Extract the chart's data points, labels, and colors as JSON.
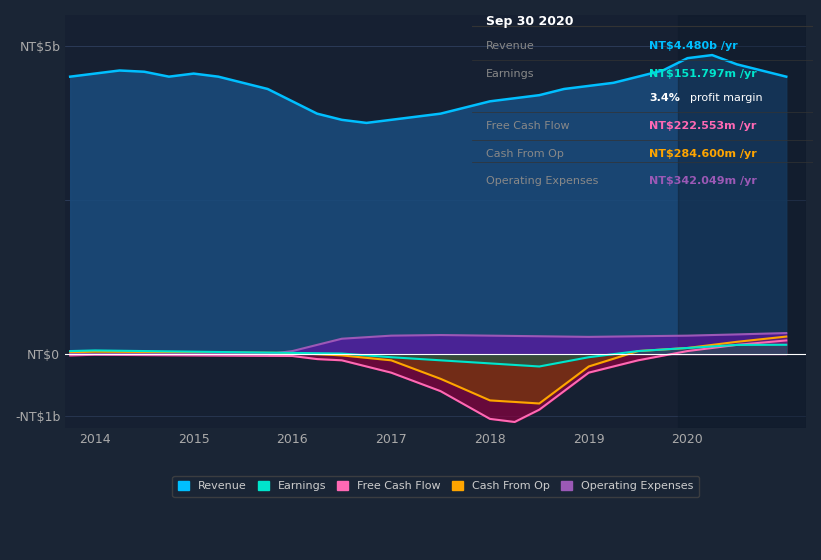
{
  "bg_color": "#1a2535",
  "plot_bg_color": "#162032",
  "title": "Sep 30 2020",
  "ylabel_top": "NT$5b",
  "ylabel_zero": "NT$0",
  "ylabel_bot": "-NT$1b",
  "xlim": [
    2013.7,
    2021.2
  ],
  "ylim": [
    -1200000000.0,
    5500000000.0
  ],
  "yticks": [
    -1000000000.0,
    0,
    2500000000.0,
    5000000000.0
  ],
  "ytick_labels": [
    "-NT$1b",
    "NT$0",
    "",
    "NT$5b"
  ],
  "xticks": [
    2014,
    2015,
    2016,
    2017,
    2018,
    2019,
    2020
  ],
  "revenue_color": "#00bfff",
  "earnings_color": "#00e5cc",
  "fcf_color": "#ff69b4",
  "cashop_color": "#ffa500",
  "opex_color": "#9b59b6",
  "revenue_fill": "#1a4a7a",
  "info_box": {
    "date": "Sep 30 2020",
    "revenue_label": "Revenue",
    "revenue_value": "NT$4.480b",
    "revenue_color": "#00bfff",
    "earnings_label": "Earnings",
    "earnings_value": "NT$151.797m",
    "earnings_color": "#00e5cc",
    "margin_value": "3.4%",
    "margin_text": "profit margin",
    "fcf_label": "Free Cash Flow",
    "fcf_value": "NT$222.553m",
    "fcf_color": "#ff69b4",
    "cashop_label": "Cash From Op",
    "cashop_value": "NT$284.600m",
    "cashop_color": "#ffa500",
    "opex_label": "Operating Expenses",
    "opex_value": "NT$342.049m",
    "opex_color": "#9b59b6"
  },
  "legend_items": [
    "Revenue",
    "Earnings",
    "Free Cash Flow",
    "Cash From Op",
    "Operating Expenses"
  ],
  "legend_colors": [
    "#00bfff",
    "#00e5cc",
    "#ff69b4",
    "#ffa500",
    "#9b59b6"
  ],
  "revenue_x": [
    2013.75,
    2014.0,
    2014.25,
    2014.5,
    2014.75,
    2015.0,
    2015.25,
    2015.5,
    2015.75,
    2016.0,
    2016.25,
    2016.5,
    2016.75,
    2017.0,
    2017.25,
    2017.5,
    2017.75,
    2018.0,
    2018.25,
    2018.5,
    2018.75,
    2019.0,
    2019.25,
    2019.5,
    2019.75,
    2020.0,
    2020.25,
    2020.5,
    2020.75,
    2021.0
  ],
  "revenue_y": [
    4500000000.0,
    4550000000.0,
    4600000000.0,
    4580000000.0,
    4500000000.0,
    4550000000.0,
    4500000000.0,
    4400000000.0,
    4300000000.0,
    4100000000.0,
    3900000000.0,
    3800000000.0,
    3750000000.0,
    3800000000.0,
    3850000000.0,
    3900000000.0,
    4000000000.0,
    4100000000.0,
    4150000000.0,
    4200000000.0,
    4300000000.0,
    4350000000.0,
    4400000000.0,
    4500000000.0,
    4600000000.0,
    4800000000.0,
    4850000000.0,
    4700000000.0,
    4600000000.0,
    4500000000.0
  ],
  "earnings_x": [
    2013.75,
    2014.0,
    2014.5,
    2015.0,
    2015.5,
    2016.0,
    2016.5,
    2017.0,
    2017.5,
    2018.0,
    2018.5,
    2019.0,
    2019.5,
    2020.0,
    2020.5,
    2021.0
  ],
  "earnings_y": [
    50000000.0,
    60000000.0,
    50000000.0,
    40000000.0,
    30000000.0,
    20000000.0,
    10000000.0,
    -50000000.0,
    -100000000.0,
    -150000000.0,
    -200000000.0,
    -50000000.0,
    50000000.0,
    100000000.0,
    150000000.0,
    152000000.0
  ],
  "fcf_x": [
    2013.75,
    2014.0,
    2014.5,
    2015.0,
    2015.5,
    2016.0,
    2016.25,
    2016.5,
    2017.0,
    2017.5,
    2018.0,
    2018.25,
    2018.5,
    2019.0,
    2019.5,
    2020.0,
    2020.5,
    2021.0
  ],
  "fcf_y": [
    -20000000.0,
    -10000000.0,
    -15000000.0,
    -20000000.0,
    -25000000.0,
    -30000000.0,
    -80000000.0,
    -100000000.0,
    -300000000.0,
    -600000000.0,
    -1050000000.0,
    -1100000000.0,
    -900000000.0,
    -300000000.0,
    -100000000.0,
    50000000.0,
    150000000.0,
    222000000.0
  ],
  "cashop_x": [
    2013.75,
    2014.0,
    2014.5,
    2015.0,
    2015.5,
    2016.0,
    2016.5,
    2017.0,
    2017.5,
    2018.0,
    2018.5,
    2019.0,
    2019.5,
    2020.0,
    2020.5,
    2021.0
  ],
  "cashop_y": [
    30000000.0,
    40000000.0,
    35000000.0,
    30000000.0,
    25000000.0,
    20000000.0,
    -20000000.0,
    -100000000.0,
    -400000000.0,
    -750000000.0,
    -800000000.0,
    -200000000.0,
    50000000.0,
    100000000.0,
    200000000.0,
    285000000.0
  ],
  "opex_x": [
    2013.75,
    2015.75,
    2016.0,
    2016.25,
    2016.5,
    2017.0,
    2017.5,
    2018.0,
    2018.5,
    2019.0,
    2019.5,
    2020.0,
    2020.5,
    2021.0
  ],
  "opex_y": [
    0,
    0,
    50000000.0,
    150000000.0,
    250000000.0,
    300000000.0,
    310000000.0,
    300000000.0,
    290000000.0,
    280000000.0,
    290000000.0,
    300000000.0,
    320000000.0,
    342000000.0
  ]
}
